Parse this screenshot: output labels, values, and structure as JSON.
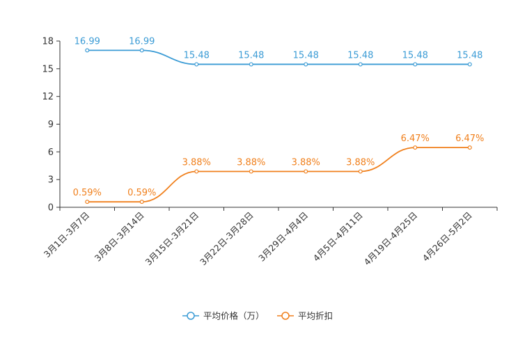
{
  "chart_data": {
    "type": "line",
    "categories": [
      "3月1日-3月7日",
      "3月8日-3月14日",
      "3月15日-3月21日",
      "3月22日-3月28日",
      "3月29日-4月4日",
      "4月5日-4月11日",
      "4月19日-4月25日",
      "4月26日-5月2日"
    ],
    "series": [
      {
        "name": "平均价格（万）",
        "color": "#3a9bd5",
        "values": [
          16.99,
          16.99,
          15.48,
          15.48,
          15.48,
          15.48,
          15.48,
          15.48
        ],
        "labels": [
          "16.99",
          "16.99",
          "15.48",
          "15.48",
          "15.48",
          "15.48",
          "15.48",
          "15.48"
        ]
      },
      {
        "name": "平均折扣",
        "color": "#f07f1b",
        "values": [
          0.59,
          0.59,
          3.88,
          3.88,
          3.88,
          3.88,
          6.47,
          6.47
        ],
        "labels": [
          "0.59%",
          "0.59%",
          "3.88%",
          "3.88%",
          "3.88%",
          "3.88%",
          "6.47%",
          "6.47%"
        ]
      }
    ],
    "yticks": [
      "0",
      "3",
      "6",
      "9",
      "12",
      "15",
      "18"
    ],
    "ylim": [
      0,
      18
    ],
    "title": "",
    "xlabel": "",
    "ylabel": "",
    "grid": false,
    "legend_position": "bottom-center"
  }
}
